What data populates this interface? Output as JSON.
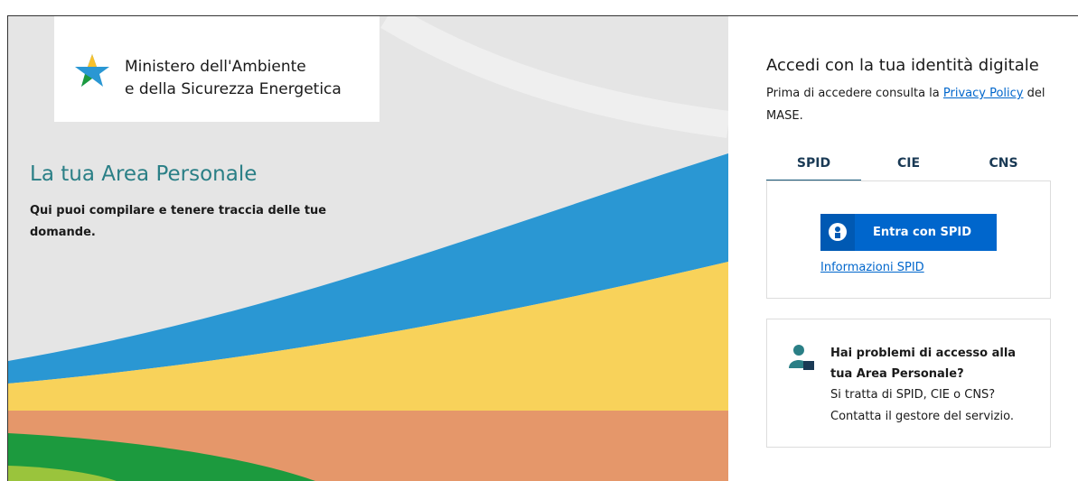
{
  "logo": {
    "line1": "Ministero dell'Ambiente",
    "line2": "e della Sicurezza Energetica"
  },
  "hero": {
    "title": "La tua Area Personale",
    "subtitle": "Qui puoi compilare e tenere traccia delle tue domande."
  },
  "login": {
    "title": "Accedi con la tua identità digitale",
    "intro": {
      "before": "Prima di accedere consulta la",
      "link": "Privacy Policy",
      "after": "del MASE."
    },
    "tabs": [
      "SPID",
      "CIE",
      "CNS"
    ],
    "button": "Entra con SPID",
    "info_link": "Informazioni SPID"
  },
  "help": {
    "title": "Hai problemi di accesso alla tua Area Personale?",
    "text": "Si tratta di SPID, CIE o CNS? Contatta il gestore del servizio."
  }
}
